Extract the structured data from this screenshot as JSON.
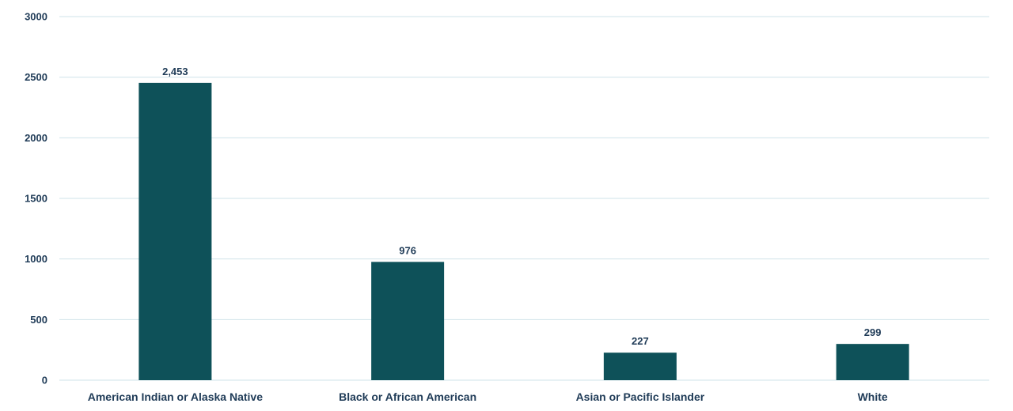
{
  "chart_data": {
    "type": "bar",
    "title": "",
    "xlabel": "",
    "ylabel": "",
    "categories": [
      "American Indian or Alaska Native",
      "Black or African American",
      "Asian or Pacific Islander",
      "White"
    ],
    "values": [
      2453,
      976,
      227,
      299
    ],
    "data_labels": [
      "2,453",
      "976",
      "227",
      "299"
    ],
    "ylim": [
      0,
      3000
    ],
    "yticks": [
      0,
      500,
      1000,
      1500,
      2000,
      2500,
      3000
    ],
    "grid": true,
    "legend": "none",
    "colors": {
      "bar": "#0e5159",
      "grid": "#cfe3ea",
      "text": "#1f3b57"
    }
  }
}
